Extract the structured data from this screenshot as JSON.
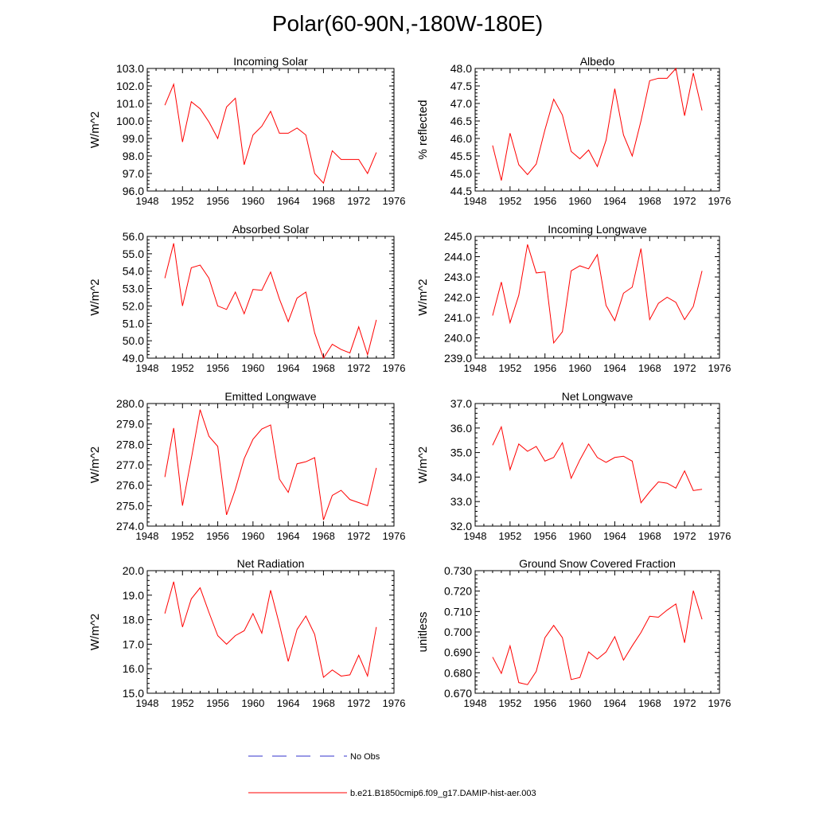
{
  "title": "Polar(60-90N,-180W-180E)",
  "legend": {
    "obs_label": "No Obs",
    "obs_color": "#3333cc",
    "model_label": "b.e21.B1850cmip6.f09_g17.DAMIP-hist-aer.003",
    "model_color": "#ff0000"
  },
  "chart_data": [
    {
      "type": "line",
      "title": "Incoming Solar",
      "ylabel": "W/m^2",
      "xlim": [
        1948,
        1976
      ],
      "ylim": [
        96.0,
        103.0
      ],
      "xticks": [
        1948,
        1952,
        1956,
        1960,
        1964,
        1968,
        1972,
        1976
      ],
      "yticks": [
        96.0,
        97.0,
        98.0,
        99.0,
        100.0,
        101.0,
        102.0,
        103.0
      ],
      "ytick_decimals": 1,
      "x": [
        1950,
        1951,
        1952,
        1953,
        1954,
        1955,
        1956,
        1957,
        1958,
        1959,
        1960,
        1961,
        1962,
        1963,
        1964,
        1965,
        1966,
        1967,
        1968,
        1969,
        1970,
        1971,
        1972,
        1973,
        1974
      ],
      "series": [
        {
          "values": [
            100.9,
            102.1,
            98.8,
            101.1,
            100.7,
            99.95,
            99.0,
            100.8,
            101.3,
            97.5,
            99.2,
            99.7,
            100.55,
            99.3,
            99.3,
            99.6,
            99.2,
            97.0,
            96.45,
            98.3,
            97.8,
            97.8,
            97.8,
            97.0,
            98.2
          ]
        }
      ]
    },
    {
      "type": "line",
      "title": "Albedo",
      "ylabel": "% reflected",
      "xlim": [
        1948,
        1976
      ],
      "ylim": [
        44.5,
        48.0
      ],
      "xticks": [
        1948,
        1952,
        1956,
        1960,
        1964,
        1968,
        1972,
        1976
      ],
      "yticks": [
        44.5,
        45.0,
        45.5,
        46.0,
        46.5,
        47.0,
        47.5,
        48.0
      ],
      "ytick_decimals": 1,
      "x": [
        1950,
        1951,
        1952,
        1953,
        1954,
        1955,
        1956,
        1957,
        1958,
        1959,
        1960,
        1961,
        1962,
        1963,
        1964,
        1965,
        1966,
        1967,
        1968,
        1969,
        1970,
        1971,
        1972,
        1973,
        1974
      ],
      "series": [
        {
          "values": [
            45.8,
            44.8,
            46.15,
            45.25,
            44.97,
            45.27,
            46.25,
            47.12,
            46.67,
            45.63,
            45.42,
            45.67,
            45.2,
            45.95,
            47.42,
            46.1,
            45.5,
            46.5,
            47.65,
            47.72,
            47.72,
            48.0,
            46.65,
            47.87,
            46.8
          ]
        }
      ]
    },
    {
      "type": "line",
      "title": "Absorbed Solar",
      "ylabel": "W/m^2",
      "xlim": [
        1948,
        1976
      ],
      "ylim": [
        49.0,
        56.0
      ],
      "xticks": [
        1948,
        1952,
        1956,
        1960,
        1964,
        1968,
        1972,
        1976
      ],
      "yticks": [
        49.0,
        50.0,
        51.0,
        52.0,
        53.0,
        54.0,
        55.0,
        56.0
      ],
      "ytick_decimals": 1,
      "x": [
        1950,
        1951,
        1952,
        1953,
        1954,
        1955,
        1956,
        1957,
        1958,
        1959,
        1960,
        1961,
        1962,
        1963,
        1964,
        1965,
        1966,
        1967,
        1968,
        1969,
        1970,
        1971,
        1972,
        1973,
        1974
      ],
      "series": [
        {
          "values": [
            53.6,
            55.6,
            52.0,
            54.2,
            54.35,
            53.6,
            52.0,
            51.8,
            52.8,
            51.55,
            52.95,
            52.9,
            53.95,
            52.4,
            51.1,
            52.45,
            52.8,
            50.45,
            49.0,
            49.8,
            49.5,
            49.3,
            50.8,
            49.2,
            51.2
          ]
        }
      ]
    },
    {
      "type": "line",
      "title": "Incoming Longwave",
      "ylabel": "W/m^2",
      "xlim": [
        1948,
        1976
      ],
      "ylim": [
        239.0,
        245.0
      ],
      "xticks": [
        1948,
        1952,
        1956,
        1960,
        1964,
        1968,
        1972,
        1976
      ],
      "yticks": [
        239.0,
        240.0,
        241.0,
        242.0,
        243.0,
        244.0,
        245.0
      ],
      "ytick_decimals": 1,
      "x": [
        1950,
        1951,
        1952,
        1953,
        1954,
        1955,
        1956,
        1957,
        1958,
        1959,
        1960,
        1961,
        1962,
        1963,
        1964,
        1965,
        1966,
        1967,
        1968,
        1969,
        1970,
        1971,
        1972,
        1973,
        1974
      ],
      "series": [
        {
          "values": [
            241.1,
            242.75,
            240.75,
            242.1,
            244.6,
            243.2,
            243.25,
            239.75,
            240.3,
            243.3,
            243.55,
            243.4,
            244.1,
            241.6,
            240.85,
            242.2,
            242.5,
            244.4,
            240.9,
            241.7,
            242.0,
            241.75,
            240.9,
            241.55,
            243.3
          ]
        }
      ]
    },
    {
      "type": "line",
      "title": "Emitted Longwave",
      "ylabel": "W/m^2",
      "xlim": [
        1948,
        1976
      ],
      "ylim": [
        274.0,
        280.0
      ],
      "xticks": [
        1948,
        1952,
        1956,
        1960,
        1964,
        1968,
        1972,
        1976
      ],
      "yticks": [
        274.0,
        275.0,
        276.0,
        277.0,
        278.0,
        279.0,
        280.0
      ],
      "ytick_decimals": 1,
      "x": [
        1950,
        1951,
        1952,
        1953,
        1954,
        1955,
        1956,
        1957,
        1958,
        1959,
        1960,
        1961,
        1962,
        1963,
        1964,
        1965,
        1966,
        1967,
        1968,
        1969,
        1970,
        1971,
        1972,
        1973,
        1974
      ],
      "series": [
        {
          "values": [
            276.4,
            278.8,
            275.0,
            277.3,
            279.7,
            278.4,
            277.9,
            274.55,
            275.8,
            277.3,
            278.25,
            278.75,
            278.95,
            276.3,
            275.65,
            277.05,
            277.15,
            277.35,
            274.3,
            275.5,
            275.75,
            275.3,
            275.15,
            275.0,
            276.85
          ]
        }
      ]
    },
    {
      "type": "line",
      "title": "Net Longwave",
      "ylabel": "W/m^2",
      "xlim": [
        1948,
        1976
      ],
      "ylim": [
        32.0,
        37.0
      ],
      "xticks": [
        1948,
        1952,
        1956,
        1960,
        1964,
        1968,
        1972,
        1976
      ],
      "yticks": [
        32.0,
        33.0,
        34.0,
        35.0,
        36.0,
        37.0
      ],
      "ytick_decimals": 1,
      "x": [
        1950,
        1951,
        1952,
        1953,
        1954,
        1955,
        1956,
        1957,
        1958,
        1959,
        1960,
        1961,
        1962,
        1963,
        1964,
        1965,
        1966,
        1967,
        1968,
        1969,
        1970,
        1971,
        1972,
        1973,
        1974
      ],
      "series": [
        {
          "values": [
            35.3,
            36.05,
            34.3,
            35.35,
            35.05,
            35.25,
            34.65,
            34.8,
            35.4,
            33.95,
            34.7,
            35.35,
            34.8,
            34.6,
            34.8,
            34.85,
            34.65,
            32.95,
            33.4,
            33.8,
            33.75,
            33.55,
            34.25,
            33.45,
            33.5
          ]
        }
      ]
    },
    {
      "type": "line",
      "title": "Net Radiation",
      "ylabel": "W/m^2",
      "xlim": [
        1948,
        1976
      ],
      "ylim": [
        15.0,
        20.0
      ],
      "xticks": [
        1948,
        1952,
        1956,
        1960,
        1964,
        1968,
        1972,
        1976
      ],
      "yticks": [
        15.0,
        16.0,
        17.0,
        18.0,
        19.0,
        20.0
      ],
      "ytick_decimals": 1,
      "x": [
        1950,
        1951,
        1952,
        1953,
        1954,
        1955,
        1956,
        1957,
        1958,
        1959,
        1960,
        1961,
        1962,
        1963,
        1964,
        1965,
        1966,
        1967,
        1968,
        1969,
        1970,
        1971,
        1972,
        1973,
        1974
      ],
      "series": [
        {
          "values": [
            18.25,
            19.55,
            17.7,
            18.85,
            19.3,
            18.3,
            17.35,
            17.0,
            17.35,
            17.55,
            18.25,
            17.45,
            19.2,
            17.8,
            16.3,
            17.6,
            18.15,
            17.4,
            15.65,
            15.95,
            15.7,
            15.75,
            16.55,
            15.7,
            17.7
          ]
        }
      ]
    },
    {
      "type": "line",
      "title": "Ground Snow Covered Fraction",
      "ylabel": "unitless",
      "xlim": [
        1948,
        1976
      ],
      "ylim": [
        0.67,
        0.73
      ],
      "xticks": [
        1948,
        1952,
        1956,
        1960,
        1964,
        1968,
        1972,
        1976
      ],
      "yticks": [
        0.67,
        0.68,
        0.69,
        0.7,
        0.71,
        0.72,
        0.73
      ],
      "ytick_decimals": 3,
      "x": [
        1950,
        1951,
        1952,
        1953,
        1954,
        1955,
        1956,
        1957,
        1958,
        1959,
        1960,
        1961,
        1962,
        1963,
        1964,
        1965,
        1966,
        1967,
        1968,
        1969,
        1970,
        1971,
        1972,
        1973,
        1974
      ],
      "series": [
        {
          "values": [
            0.6877,
            0.6797,
            0.6932,
            0.6752,
            0.6742,
            0.6807,
            0.6972,
            0.7032,
            0.6972,
            0.6767,
            0.6777,
            0.6902,
            0.6867,
            0.6902,
            0.6977,
            0.6862,
            0.6932,
            0.6997,
            0.7077,
            0.7072,
            0.7107,
            0.7137,
            0.6947,
            0.7202,
            0.7062
          ]
        }
      ]
    }
  ]
}
